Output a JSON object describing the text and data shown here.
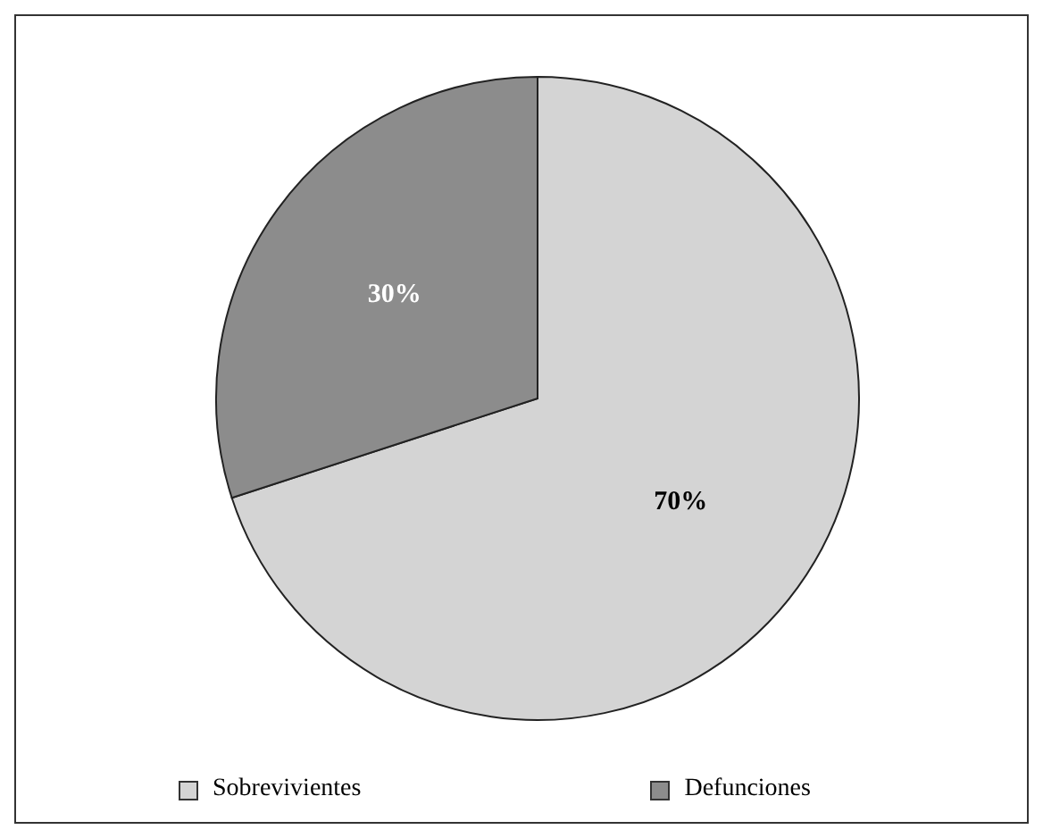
{
  "chart_data": {
    "type": "pie",
    "categories": [
      "Sobrevivientes",
      "Defunciones"
    ],
    "values": [
      70,
      30
    ],
    "colors": [
      "#d4d4d4",
      "#8c8c8c"
    ],
    "value_labels": [
      "70%",
      "30%"
    ],
    "legend": "bottom"
  }
}
